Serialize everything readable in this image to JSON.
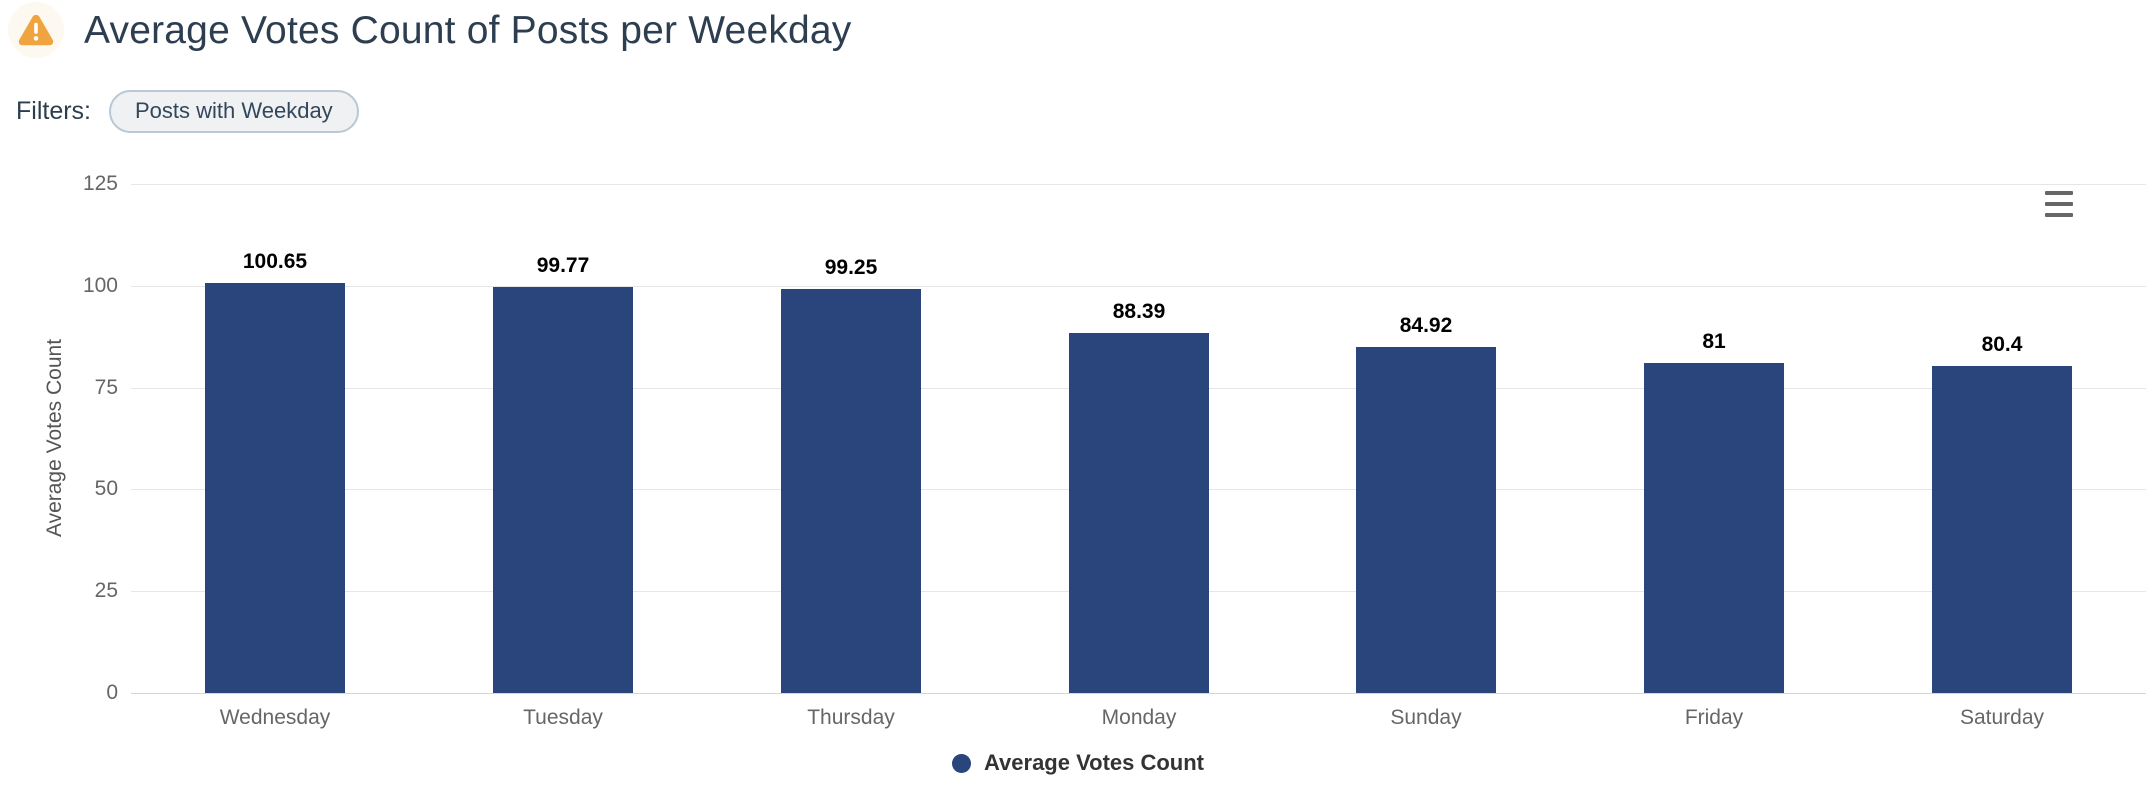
{
  "header": {
    "title": "Average Votes Count of Posts per Weekday",
    "warning_icon": "warning-triangle"
  },
  "filters": {
    "label": "Filters:",
    "chips": [
      {
        "label": "Posts with Weekday"
      }
    ]
  },
  "chart": {
    "context_menu_icon": "hamburger-menu"
  },
  "chart_data": {
    "type": "bar",
    "categories": [
      "Wednesday",
      "Tuesday",
      "Thursday",
      "Monday",
      "Sunday",
      "Friday",
      "Saturday"
    ],
    "values": [
      100.65,
      99.77,
      99.25,
      88.39,
      84.92,
      81,
      80.4
    ],
    "data_labels": [
      "100.65",
      "99.77",
      "99.25",
      "88.39",
      "84.92",
      "81",
      "80.4"
    ],
    "series_name": "Average Votes Count",
    "title": "",
    "xlabel": "",
    "ylabel": "Average Votes Count",
    "ylim": [
      0,
      125
    ],
    "yticks": [
      0,
      25,
      50,
      75,
      100,
      125
    ],
    "grid": true,
    "legend": {
      "position": "bottom",
      "entries": [
        {
          "label": "Average Votes Count",
          "color": "#2a447c"
        }
      ]
    },
    "bar_color": "#2a447c"
  },
  "colors": {
    "bar": "#2a447c",
    "warning": "#f0a43f",
    "grid": "#e6e6e6",
    "axis_line": "#ccd6eb",
    "tick_text": "#666666",
    "title_text": "#2d3e50"
  }
}
